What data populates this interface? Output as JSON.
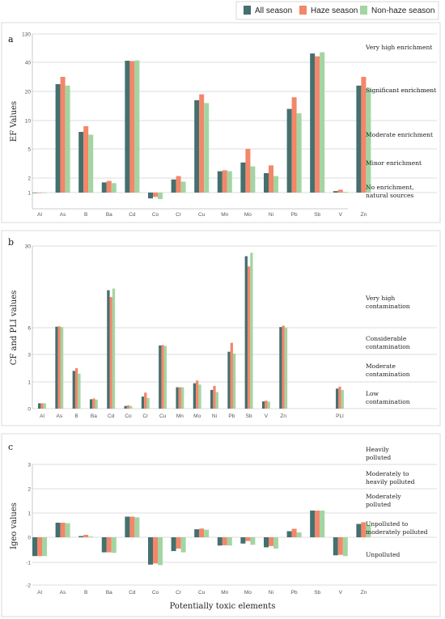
{
  "legend": [
    {
      "name": "All season",
      "color": "#44706e"
    },
    {
      "name": "Haze season",
      "color": "#f4866a"
    },
    {
      "name": "Non-haze season",
      "color": "#a3d5a2"
    }
  ],
  "xlabel": "Potentially toxic elements",
  "chart_data": [
    {
      "panel": "a",
      "type": "bar",
      "ylabel": "EF Values",
      "grid": true,
      "categories": [
        "Al",
        "As",
        "B",
        "Ba",
        "Cd",
        "Co",
        "Cr",
        "Cu",
        "Mn",
        "Mo",
        "Ni",
        "Pb",
        "Sb",
        "V",
        "Zn"
      ],
      "yticks": [
        1,
        2,
        5,
        10,
        20,
        40,
        130
      ],
      "series": [
        {
          "name": "All season",
          "values": [
            1,
            25,
            8,
            1.7,
            45,
            0.6,
            1.9,
            17,
            2.7,
            3.6,
            2.5,
            14,
            68,
            1.1,
            24
          ]
        },
        {
          "name": "Haze season",
          "values": [
            1,
            30,
            9,
            1.8,
            44,
            0.7,
            2.2,
            19,
            2.8,
            5,
            3.3,
            18,
            59,
            1.2,
            30
          ]
        },
        {
          "name": "Non-haze season",
          "values": [
            1,
            24,
            7.5,
            1.65,
            46,
            0.55,
            1.75,
            16,
            2.7,
            3.2,
            2.2,
            12.5,
            72,
            1.05,
            22
          ]
        }
      ],
      "zones": [
        "Very high enrichment",
        "Significant enrichment",
        "Moderate enrichment",
        "Minor enrichment",
        "No enrichment, natural sources"
      ]
    },
    {
      "panel": "b",
      "type": "bar",
      "ylabel": "CF and PLI values",
      "grid": true,
      "categories": [
        "Al",
        "As",
        "B",
        "Ba",
        "Cd",
        "Co",
        "Cr",
        "Cu",
        "Mn",
        "Mo",
        "Ni",
        "Pb",
        "Sb",
        "V",
        "Zn",
        "PLI"
      ],
      "yticks": [
        0,
        1,
        3,
        6,
        30
      ],
      "series": [
        {
          "name": "All season",
          "values": [
            0.2,
            6.3,
            1.8,
            0.35,
            17,
            0.1,
            0.45,
            4,
            0.8,
            0.95,
            0.7,
            3.3,
            27,
            0.27,
            6.2,
            0.75
          ]
        },
        {
          "name": "Haze season",
          "values": [
            0.2,
            6.4,
            2.0,
            0.38,
            15,
            0.12,
            0.6,
            4.05,
            0.8,
            1.1,
            0.85,
            4.3,
            24,
            0.3,
            6.6,
            0.82
          ]
        },
        {
          "name": "Non-haze season",
          "values": [
            0.2,
            6.2,
            1.6,
            0.34,
            17.5,
            0.1,
            0.4,
            3.95,
            0.8,
            0.9,
            0.62,
            3.1,
            28,
            0.26,
            6.0,
            0.7
          ]
        }
      ],
      "zones": [
        "Very high contamination",
        "Considerable contamination",
        "Moderate contamination",
        "Low contamination"
      ]
    },
    {
      "panel": "c",
      "type": "bar",
      "ylabel": "Igeo values",
      "grid": true,
      "categories": [
        "Al",
        "As",
        "B",
        "Ba",
        "Cd",
        "Co",
        "Cr",
        "Cu",
        "Mn",
        "Mo",
        "Ni",
        "Pb",
        "Sb",
        "V",
        "Zn"
      ],
      "yticks": [
        -2,
        -1,
        0,
        1,
        2,
        3
      ],
      "series": [
        {
          "name": "All season",
          "values": [
            -0.75,
            0.6,
            0.05,
            -0.6,
            0.85,
            -1.1,
            -0.55,
            0.33,
            -0.33,
            -0.25,
            -0.4,
            0.25,
            1.1,
            -0.72,
            0.55
          ]
        },
        {
          "name": "Haze season",
          "values": [
            -0.75,
            0.6,
            0.1,
            -0.6,
            0.85,
            -1.05,
            -0.45,
            0.36,
            -0.32,
            -0.15,
            -0.35,
            0.35,
            1.1,
            -0.7,
            0.62
          ]
        },
        {
          "name": "Non-haze season",
          "values": [
            -0.75,
            0.58,
            0.03,
            -0.62,
            0.82,
            -1.12,
            -0.6,
            0.31,
            -0.33,
            -0.3,
            -0.45,
            0.2,
            1.1,
            -0.75,
            0.5
          ]
        }
      ],
      "zones": [
        "Heavily polluted",
        "Moderately to heavily polluted",
        "Moderately polluted",
        "Unpolluted to moderately polluted",
        "Unpolluted"
      ]
    }
  ]
}
